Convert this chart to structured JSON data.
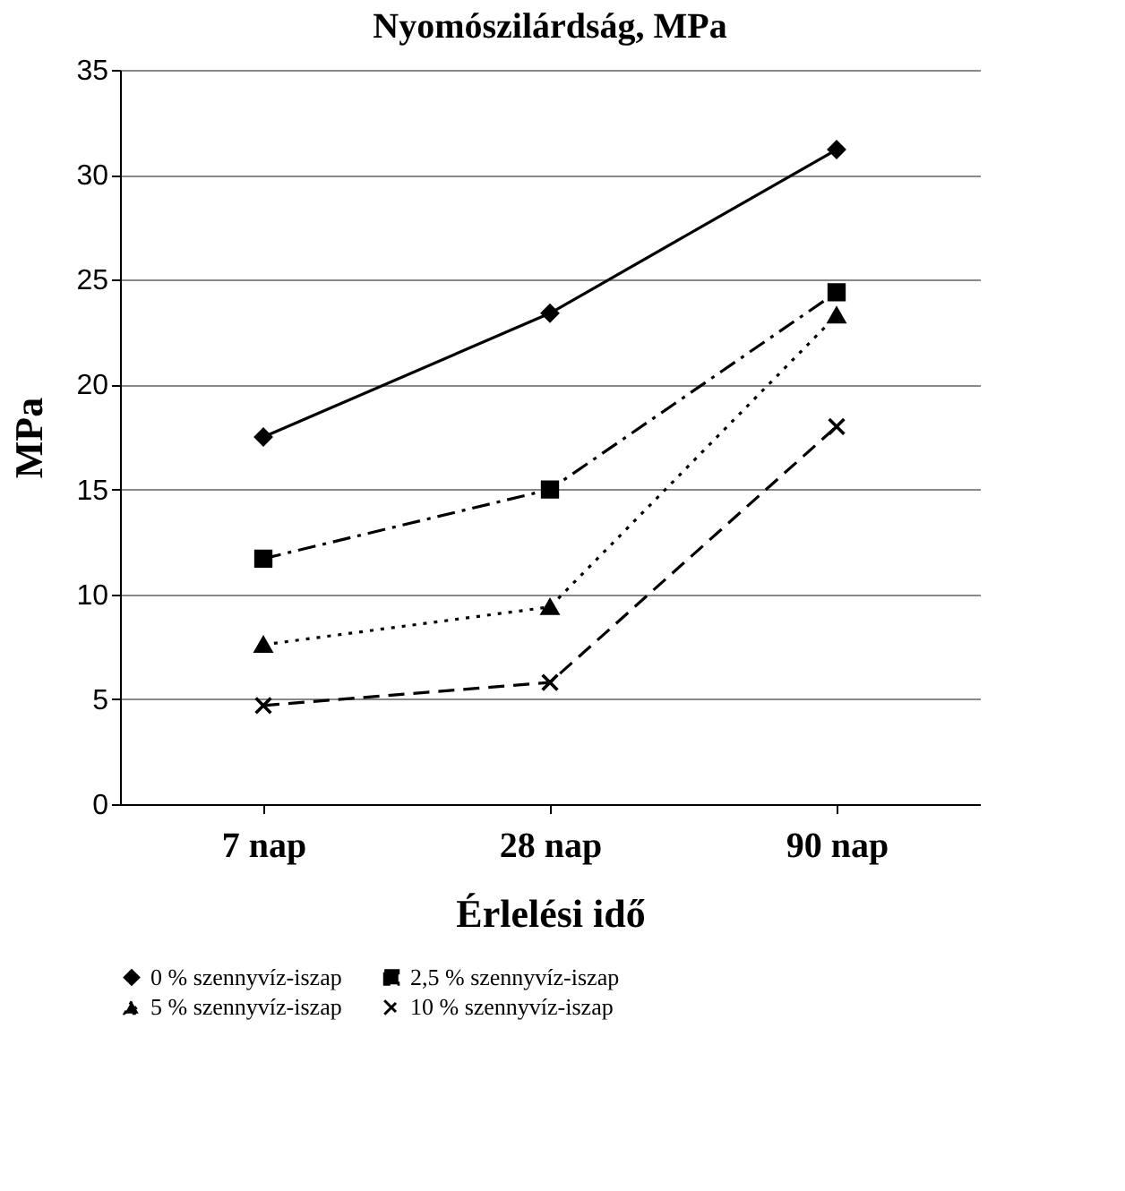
{
  "chart_data": {
    "type": "line",
    "title": "Nyomószilárdság, MPa",
    "xlabel": "Érlelési idő",
    "ylabel": "MPa",
    "categories": [
      "7 nap",
      "28 nap",
      "90 nap"
    ],
    "series": [
      {
        "name": "0 % szennyvíz-iszap",
        "color": "#000000",
        "marker": "diamond",
        "line_style": "solid",
        "values": [
          17.5,
          23.4,
          31.2
        ]
      },
      {
        "name": "2,5 % szennyvíz-iszap",
        "color": "#000000",
        "marker": "square",
        "line_style": "dashdot",
        "values": [
          11.7,
          15.0,
          24.4
        ]
      },
      {
        "name": "5 % szennyvíz-iszap",
        "color": "#000000",
        "marker": "triangle",
        "line_style": "dotted",
        "values": [
          7.6,
          9.4,
          23.3
        ]
      },
      {
        "name": "10 % szennyvíz-iszap",
        "color": "#000000",
        "marker": "cross",
        "line_style": "dashed",
        "values": [
          4.7,
          5.8,
          18.0
        ]
      }
    ],
    "ylim": [
      0,
      35
    ],
    "yticks": [
      0,
      5,
      10,
      15,
      20,
      25,
      30,
      35
    ],
    "grid": "y",
    "legend": "bottom"
  }
}
